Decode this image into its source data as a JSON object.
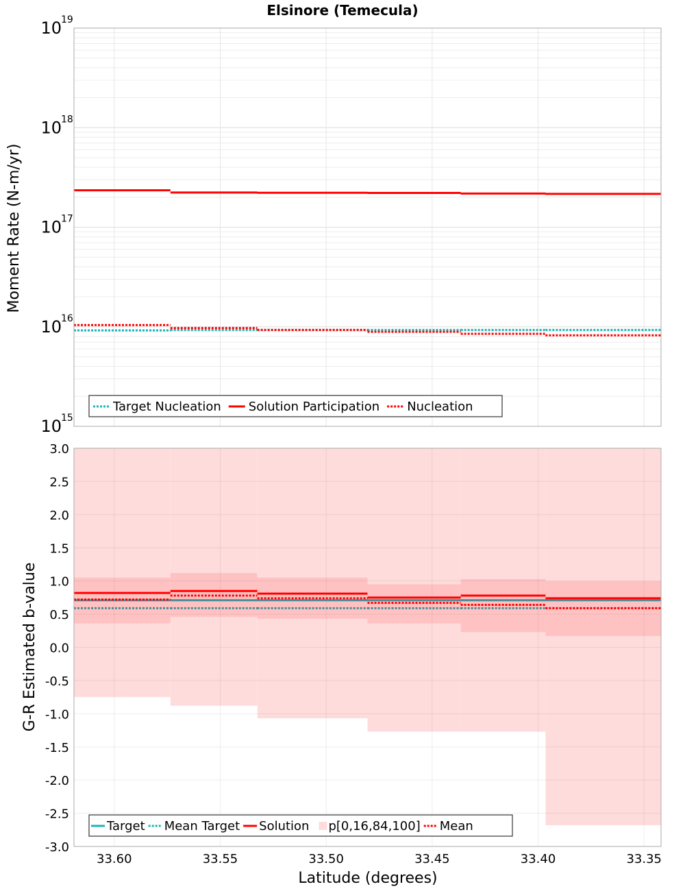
{
  "chart_data": [
    {
      "type": "line",
      "panel": "top",
      "title": "Elsinore (Temecula)",
      "ylabel": "Moment Rate (N-m/yr)",
      "yscale": "log",
      "ylim": [
        1000000000000000.0,
        1e+19
      ],
      "xlim": [
        33.619,
        33.342
      ],
      "y_tick_labels": [
        {
          "base": "10",
          "exp": "15",
          "value": 1000000000000000.0
        },
        {
          "base": "10",
          "exp": "16",
          "value": 1e+16
        },
        {
          "base": "10",
          "exp": "17",
          "value": 1e+17
        },
        {
          "base": "10",
          "exp": "18",
          "value": 1e+18
        },
        {
          "base": "10",
          "exp": "19",
          "value": 1e+19
        }
      ],
      "bin_edges": [
        33.619,
        33.5735,
        33.5325,
        33.4805,
        33.4365,
        33.3965,
        33.342
      ],
      "series": [
        {
          "name": "Target Nucleation",
          "style": "dotted",
          "color": "#1ab4b4",
          "values": [
            9200000000000000.0,
            9300000000000000.0,
            9300000000000000.0,
            9300000000000000.0,
            9300000000000000.0,
            9300000000000000.0
          ]
        },
        {
          "name": "Solution Participation",
          "style": "solid",
          "color": "#ff0000",
          "values": [
            2.35e+17,
            2.23e+17,
            2.22e+17,
            2.21e+17,
            2.18e+17,
            2.16e+17
          ]
        },
        {
          "name": "Nucleation",
          "style": "dotted",
          "color": "#ff0000",
          "values": [
            1.04e+16,
            9700000000000000.0,
            9300000000000000.0,
            8900000000000000.0,
            8500000000000000.0,
            8200000000000000.0
          ]
        }
      ],
      "legend": [
        "Target Nucleation",
        "Solution Participation",
        "Nucleation"
      ],
      "legend_position": "bottom-left"
    },
    {
      "type": "line",
      "panel": "bottom",
      "ylabel": "G-R Estimated b-value",
      "xlabel": "Latitude (degrees)",
      "ylim": [
        -3.0,
        3.0
      ],
      "xlim": [
        33.619,
        33.342
      ],
      "y_ticks": [
        "3.0",
        "2.5",
        "2.0",
        "1.5",
        "1.0",
        "0.5",
        "0.0",
        "-0.5",
        "-1.0",
        "-1.5",
        "-2.0",
        "-2.5",
        "-3.0"
      ],
      "x_ticks": [
        "33.60",
        "33.55",
        "33.50",
        "33.45",
        "33.40",
        "33.35"
      ],
      "bin_edges": [
        33.619,
        33.5735,
        33.5325,
        33.4805,
        33.4365,
        33.3965,
        33.342
      ],
      "bands": {
        "name": "p[0,16,84,100]",
        "p0": [
          -0.75,
          -0.88,
          -1.07,
          -1.27,
          -1.27,
          -2.68
        ],
        "p16": [
          0.36,
          0.46,
          0.43,
          0.36,
          0.23,
          0.17
        ],
        "p84": [
          1.05,
          1.12,
          1.05,
          0.95,
          1.03,
          1.0
        ],
        "p100": [
          3.0,
          3.0,
          3.0,
          3.0,
          3.0,
          3.0
        ]
      },
      "series": [
        {
          "name": "Target",
          "style": "solid",
          "color": "#1ab4b4",
          "values": [
            0.71,
            0.71,
            0.71,
            0.71,
            0.71,
            0.71
          ]
        },
        {
          "name": "Mean Target",
          "style": "dotted",
          "color": "#1ab4b4",
          "values": [
            0.59,
            0.59,
            0.59,
            0.59,
            0.59,
            0.59
          ]
        },
        {
          "name": "Solution",
          "style": "solid",
          "color": "#ff0000",
          "values": [
            0.82,
            0.85,
            0.81,
            0.75,
            0.78,
            0.74
          ]
        },
        {
          "name": "Mean",
          "style": "dotted",
          "color": "#ff0000",
          "values": [
            0.72,
            0.78,
            0.74,
            0.67,
            0.64,
            0.59
          ]
        }
      ],
      "legend": [
        "Target",
        "Mean Target",
        "Solution",
        "p[0,16,84,100]",
        "Mean"
      ],
      "legend_position": "bottom-left"
    }
  ]
}
